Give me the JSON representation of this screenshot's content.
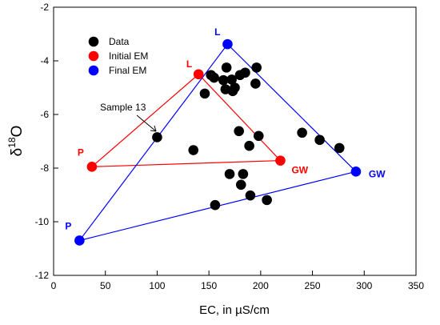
{
  "chart_data": {
    "type": "scatter",
    "xlabel": "EC, in µS/cm",
    "ylabel_base": "δ",
    "ylabel_sup": "18",
    "ylabel_tail": "O",
    "xlim": [
      0,
      350
    ],
    "ylim": [
      -12,
      -2
    ],
    "x_ticks": [
      0,
      50,
      100,
      150,
      200,
      250,
      300,
      350
    ],
    "y_ticks": [
      -12,
      -10,
      -8,
      -6,
      -4,
      -2
    ],
    "grid": false,
    "legend_position": "top-left",
    "legend": [
      {
        "label": "Data",
        "color": "#000000"
      },
      {
        "label": "Initial EM",
        "color": "#ff0000"
      },
      {
        "label": "Final EM",
        "color": "#0000ff"
      }
    ],
    "series": [
      {
        "name": "Data",
        "color": "#000000",
        "points": [
          {
            "x": 100,
            "y": -6.85
          },
          {
            "x": 135,
            "y": -7.33
          },
          {
            "x": 146,
            "y": -5.22
          },
          {
            "x": 152,
            "y": -4.53
          },
          {
            "x": 155,
            "y": -4.63
          },
          {
            "x": 156,
            "y": -9.38
          },
          {
            "x": 164,
            "y": -4.72
          },
          {
            "x": 166,
            "y": -5.06
          },
          {
            "x": 167,
            "y": -4.25
          },
          {
            "x": 170,
            "y": -8.22
          },
          {
            "x": 172,
            "y": -4.7
          },
          {
            "x": 173,
            "y": -5.13
          },
          {
            "x": 175,
            "y": -5.0
          },
          {
            "x": 179,
            "y": -6.62
          },
          {
            "x": 180,
            "y": -4.53
          },
          {
            "x": 181,
            "y": -8.62
          },
          {
            "x": 183,
            "y": -8.22
          },
          {
            "x": 185,
            "y": -4.44
          },
          {
            "x": 189,
            "y": -7.17
          },
          {
            "x": 190,
            "y": -9.02
          },
          {
            "x": 195,
            "y": -4.85
          },
          {
            "x": 196,
            "y": -4.25
          },
          {
            "x": 198,
            "y": -6.8
          },
          {
            "x": 206,
            "y": -9.19
          },
          {
            "x": 240,
            "y": -6.68
          },
          {
            "x": 257,
            "y": -6.95
          },
          {
            "x": 276,
            "y": -7.25
          }
        ]
      },
      {
        "name": "Initial EM",
        "color": "#ff0000",
        "points": [
          {
            "label": "L",
            "x": 140,
            "y": -4.5
          },
          {
            "label": "P",
            "x": 37,
            "y": -7.95
          },
          {
            "label": "GW",
            "x": 219,
            "y": -7.72
          }
        ]
      },
      {
        "name": "Final EM",
        "color": "#0000ff",
        "points": [
          {
            "label": "L",
            "x": 168,
            "y": -3.38
          },
          {
            "label": "P",
            "x": 25,
            "y": -10.7
          },
          {
            "label": "GW",
            "x": 292,
            "y": -8.13
          }
        ]
      }
    ],
    "annotations": [
      {
        "text": "Sample 13",
        "x": 100,
        "y": -6.85
      }
    ]
  }
}
